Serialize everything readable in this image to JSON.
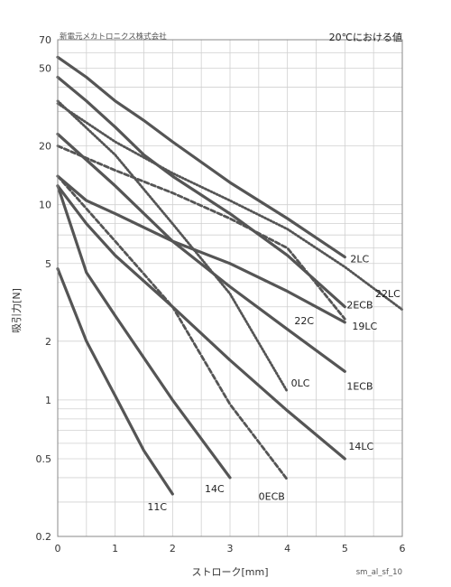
{
  "header": {
    "company": "新電元メカトロニクス株式会社",
    "condition": "20℃における値"
  },
  "footer": {
    "code": "sm_al_sf_10"
  },
  "chart_data": {
    "type": "line",
    "xlabel": "ストローク[mm]",
    "ylabel": "吸引力[N]",
    "xlim": [
      0,
      6
    ],
    "ylim": [
      0.2,
      70
    ],
    "yscale": "log",
    "grid": true,
    "x_ticks": [
      "0",
      "1",
      "2",
      "3",
      "4",
      "5",
      "6"
    ],
    "y_ticks": [
      "0.2",
      "0.5",
      "1",
      "2",
      "5",
      "10",
      "20",
      "50",
      "70"
    ],
    "y_tick_values": [
      0.2,
      0.5,
      1,
      2,
      5,
      10,
      20,
      50,
      70
    ],
    "series": [
      {
        "name": "2LC",
        "style": "solid",
        "x": [
          0,
          0.5,
          1,
          1.5,
          2,
          3,
          4,
          5
        ],
        "y": [
          57,
          45,
          34,
          27,
          21,
          13,
          8.5,
          5.4
        ]
      },
      {
        "name": "22LC",
        "style": "dotted",
        "x": [
          0,
          1,
          2,
          3,
          4,
          5,
          6
        ],
        "y": [
          33,
          21,
          14.5,
          10.5,
          7.5,
          4.8,
          2.9
        ]
      },
      {
        "name": "2ECB",
        "style": "solid",
        "x": [
          0,
          0.5,
          1,
          1.5,
          2,
          3,
          4,
          5
        ],
        "y": [
          45,
          34,
          25,
          18,
          14,
          9,
          5.5,
          3
        ]
      },
      {
        "name": "22C",
        "style": "dashed",
        "x": [
          0,
          1,
          2,
          3,
          4,
          5
        ],
        "y": [
          20,
          15,
          11.5,
          8.5,
          6,
          2.6
        ]
      },
      {
        "name": "19LC",
        "style": "solid",
        "x": [
          0,
          0.5,
          1,
          2,
          3,
          4,
          5
        ],
        "y": [
          14,
          10.5,
          9,
          6.5,
          5,
          3.6,
          2.5
        ]
      },
      {
        "name": "1ECB",
        "style": "solid",
        "x": [
          0,
          1,
          2,
          3,
          4,
          5
        ],
        "y": [
          23,
          12.5,
          6.5,
          3.8,
          2.3,
          1.4
        ]
      },
      {
        "name": "0LC",
        "style": "dotted",
        "x": [
          0,
          1,
          2,
          3,
          4
        ],
        "y": [
          34,
          18,
          8,
          3.5,
          1.1
        ]
      },
      {
        "name": "14LC",
        "style": "solid",
        "x": [
          0,
          0.5,
          1,
          2,
          3,
          4,
          5
        ],
        "y": [
          12.5,
          8,
          5.5,
          3,
          1.6,
          0.88,
          0.5
        ]
      },
      {
        "name": "0ECB",
        "style": "dashed",
        "x": [
          0,
          1,
          2,
          3,
          4
        ],
        "y": [
          14,
          6.5,
          3,
          0.95,
          0.39
        ]
      },
      {
        "name": "14C",
        "style": "solid",
        "x": [
          0,
          0.5,
          1,
          2,
          3
        ],
        "y": [
          12.5,
          4.5,
          2.7,
          1,
          0.4
        ]
      },
      {
        "name": "11C",
        "style": "solid",
        "x": [
          0,
          0.5,
          1,
          1.5,
          2
        ],
        "y": [
          4.7,
          2,
          1.05,
          0.55,
          0.33
        ]
      }
    ]
  }
}
